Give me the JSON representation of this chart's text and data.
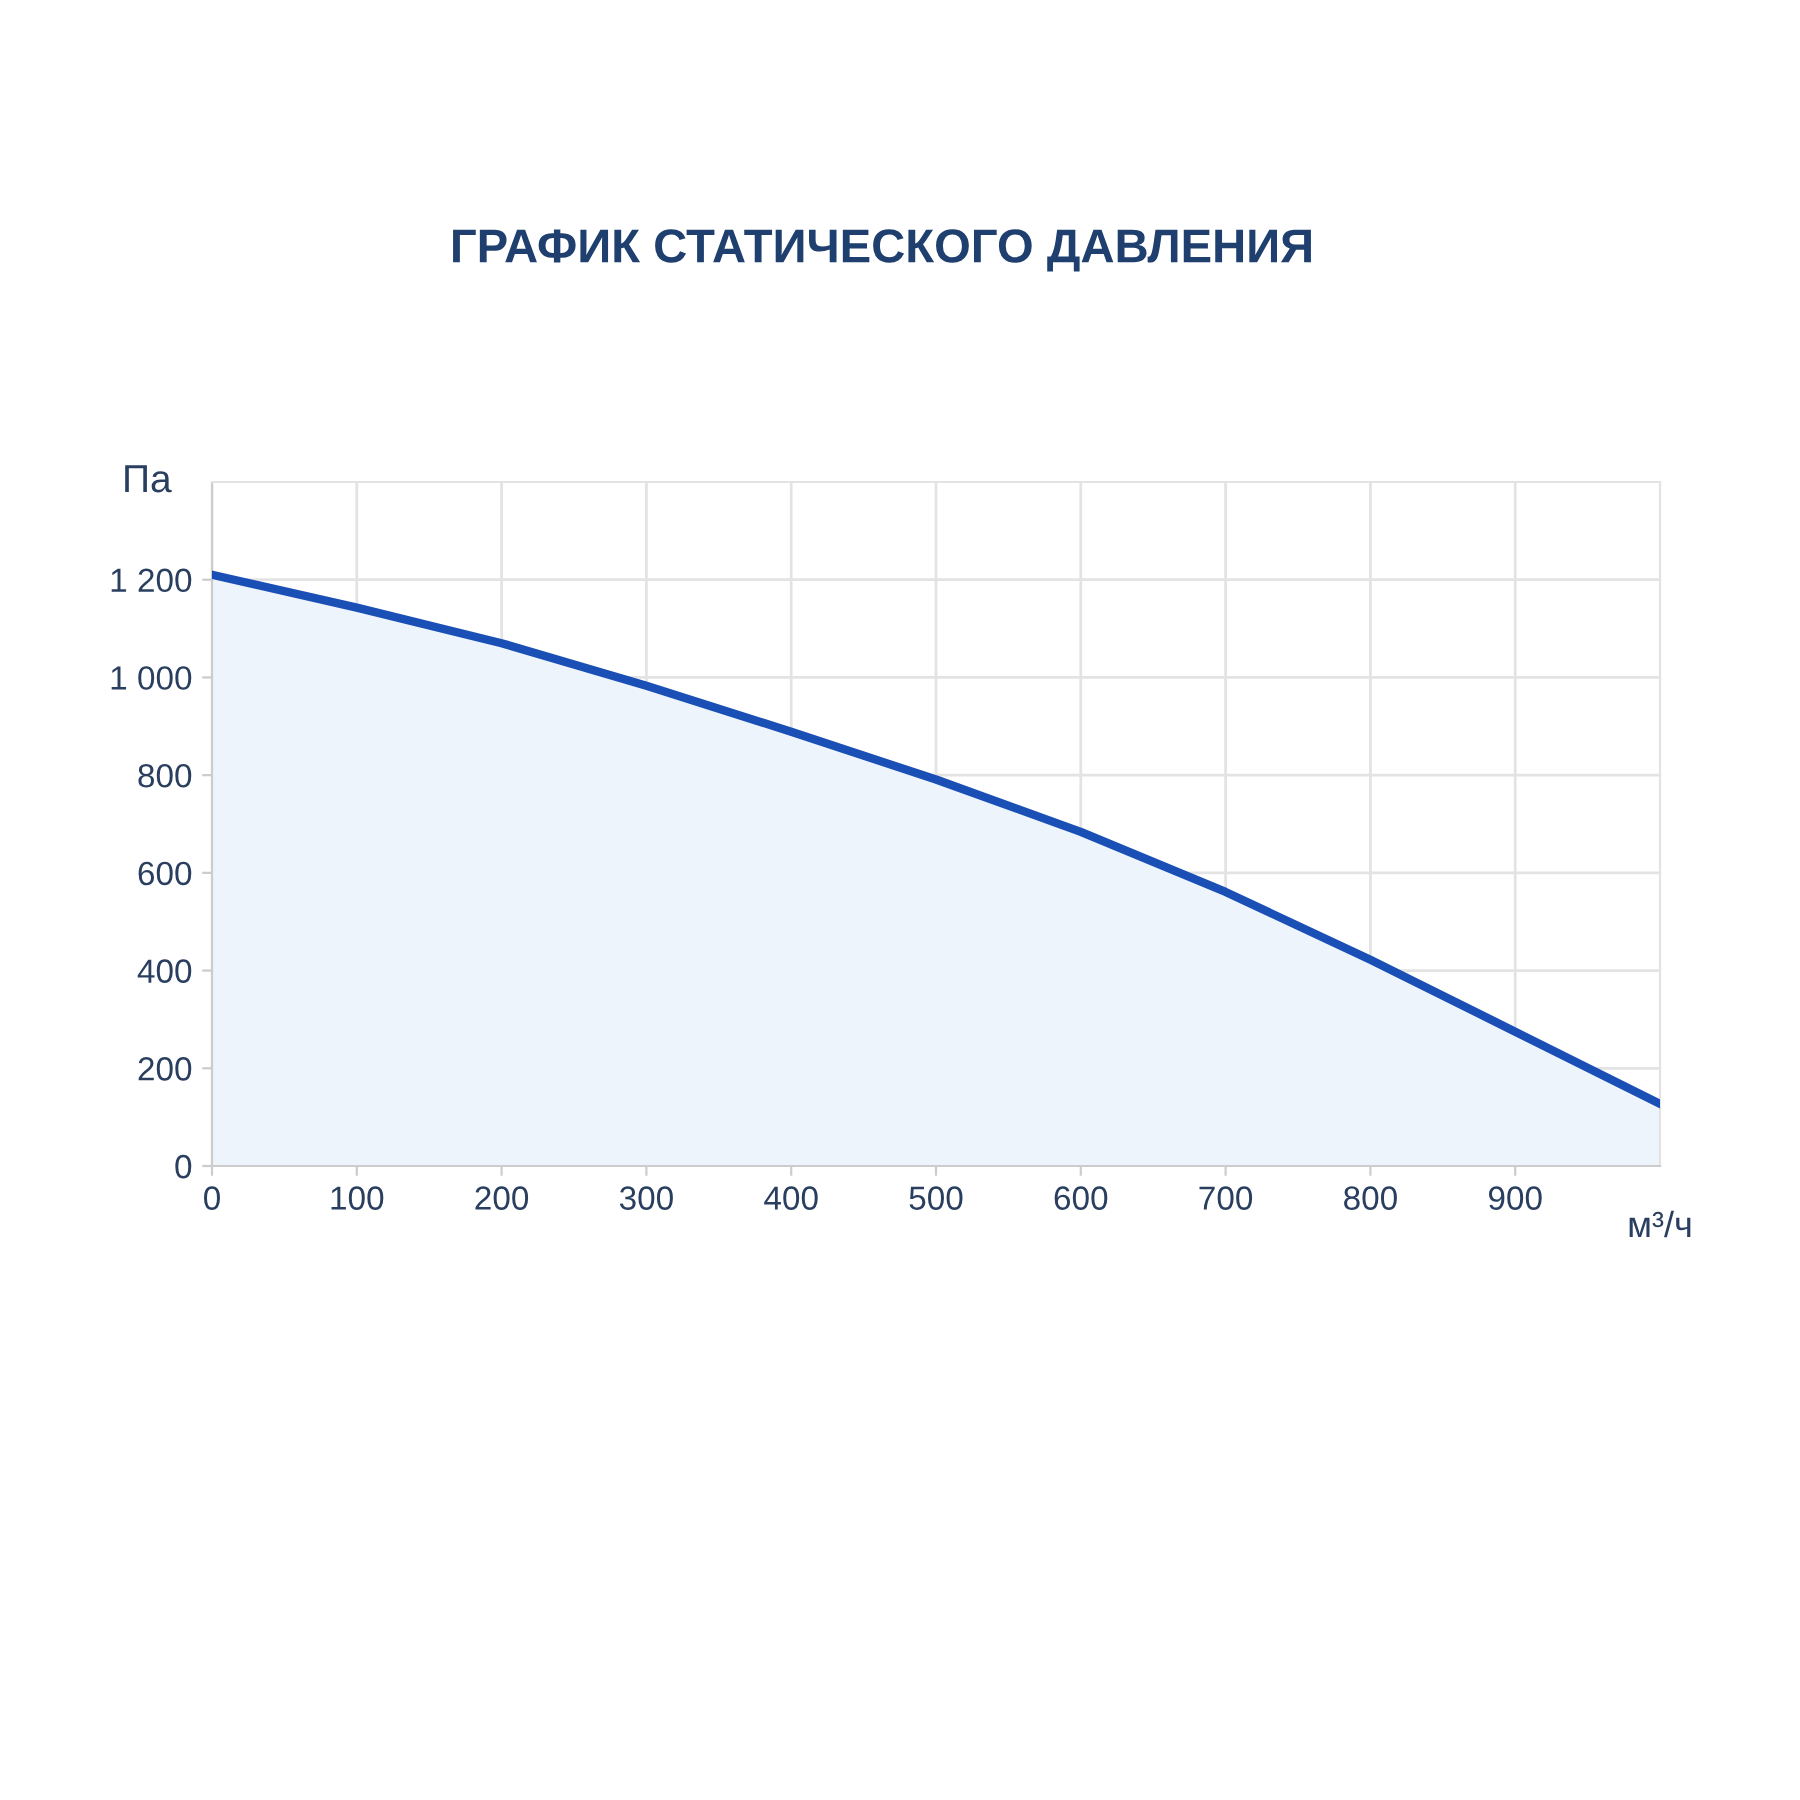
{
  "chart_data": {
    "type": "area",
    "title": "ГРАФИК СТАТИЧЕСКОГО ДАВЛЕНИЯ",
    "xlabel": "м³/ч",
    "ylabel": "Па",
    "x": [
      0,
      100,
      200,
      300,
      400,
      500,
      600,
      700,
      800,
      900,
      1000
    ],
    "series": [
      {
        "color": "#1a4fb5",
        "values": [
          1210,
          1143,
          1070,
          983,
          889,
          791,
          684,
          561,
          422,
          275,
          127
        ]
      }
    ],
    "xlim": [
      0,
      1000
    ],
    "xticks": [
      0,
      100,
      200,
      300,
      400,
      500,
      600,
      700,
      800,
      900
    ],
    "ylim": [
      0,
      1400
    ],
    "yticks": [
      0,
      200,
      400,
      600,
      800,
      {
        "value": 1000,
        "label": "1 000"
      },
      {
        "value": 1200,
        "label": "1 200"
      }
    ],
    "grid": true,
    "marker": "none",
    "line_style": "solid"
  }
}
